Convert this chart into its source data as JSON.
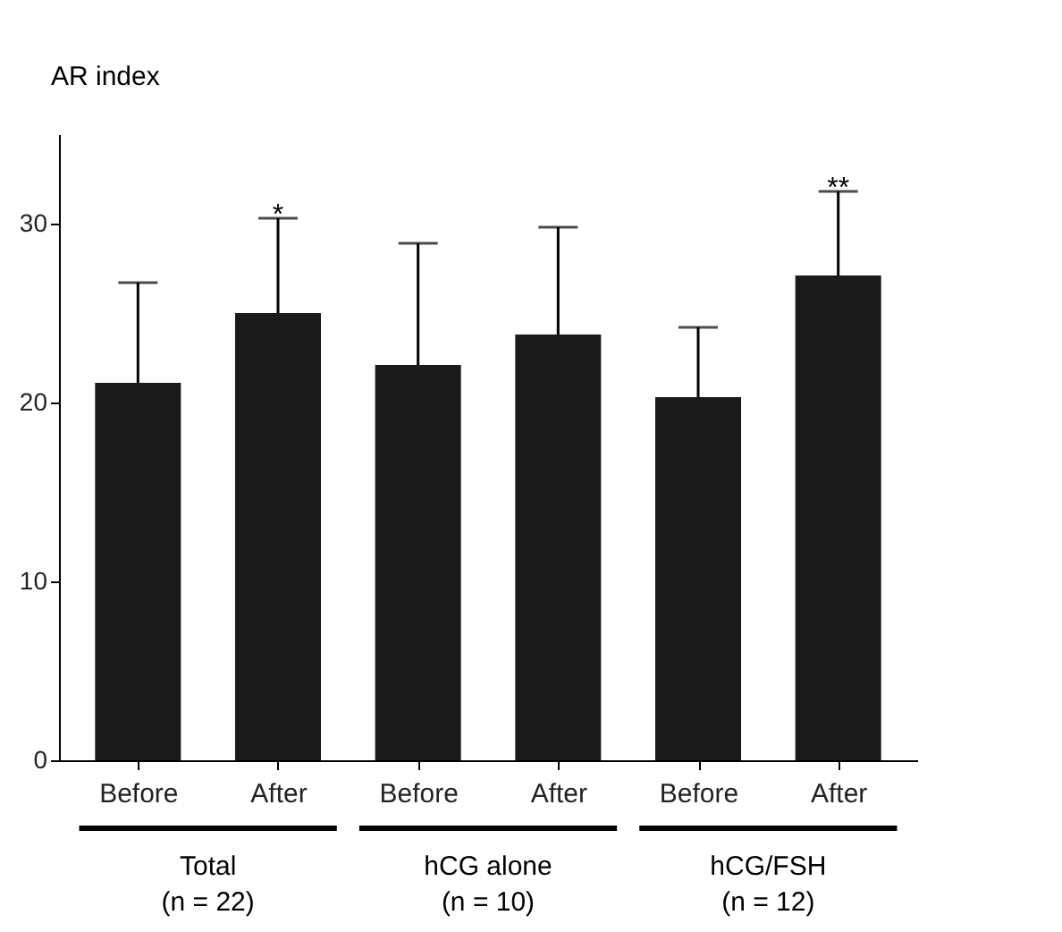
{
  "chart_data": {
    "type": "bar",
    "ylabel": "AR index",
    "categories": [
      "Before",
      "After",
      "Before",
      "After",
      "Before",
      "After"
    ],
    "values": [
      21.1,
      25.0,
      22.1,
      23.8,
      20.3,
      27.1
    ],
    "errors": [
      [
        21.1,
        26.7
      ],
      [
        25.0,
        30.3
      ],
      [
        22.1,
        28.9
      ],
      [
        23.8,
        29.8
      ],
      [
        20.3,
        24.2
      ],
      [
        27.1,
        31.8
      ]
    ],
    "value_labels": [
      null,
      "*",
      null,
      null,
      null,
      "**"
    ],
    "color": "#1a1a1a",
    "ylim": [
      0,
      35
    ],
    "yticks": [
      0,
      10,
      20,
      30
    ],
    "grid": false,
    "annotations": [
      "Total\n(n = 22)",
      "hCG alone\n(n = 10)",
      "hCG/FSH\n(n = 12)"
    ]
  }
}
